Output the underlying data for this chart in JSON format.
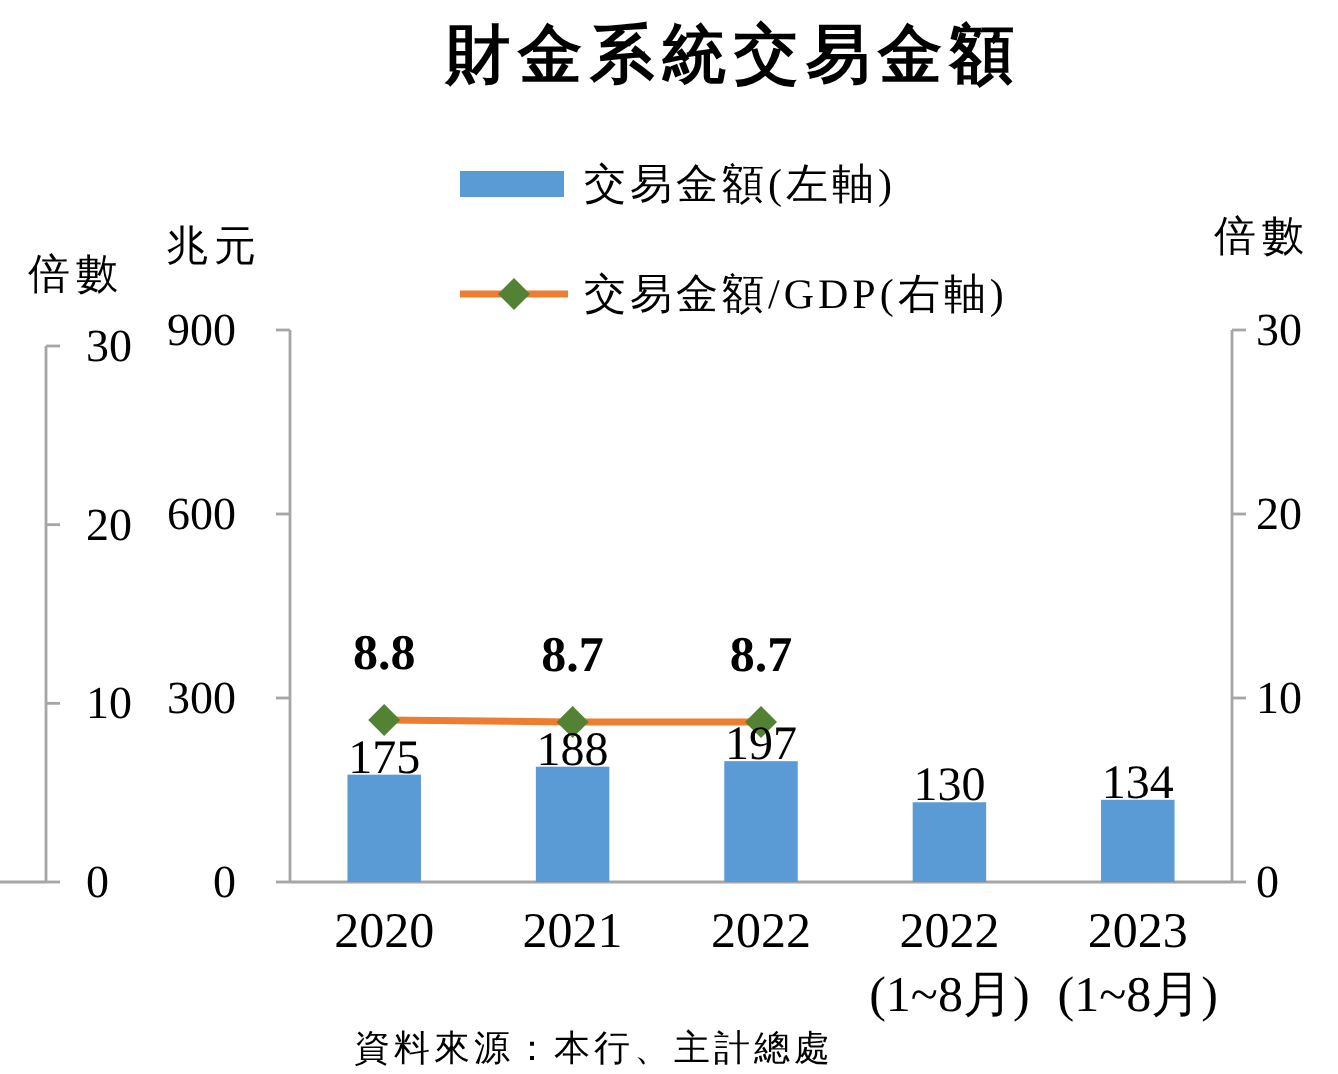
{
  "chart_data": {
    "type": "bar",
    "title": "財金系統交易金額",
    "ylabel": "兆元",
    "y2label": "倍數",
    "y3label": "倍數",
    "categories": [
      "2020",
      "2021",
      "2022",
      "2022\n(1~8月)",
      "2023\n(1~8月)"
    ],
    "series": [
      {
        "name": "交易金額(左軸)",
        "color": "#5b9bd5",
        "values": [
          175,
          188,
          197,
          130,
          134
        ]
      },
      {
        "name": "交易金額/GDP(右軸)",
        "type": "line",
        "axis": "y2",
        "color": "#ed7d31",
        "colors": [
          "#548235",
          "#548235",
          "#548235",
          null,
          null
        ],
        "marker": "diamond",
        "values": [
          8.8,
          8.7,
          8.7,
          null,
          null
        ]
      }
    ],
    "ylim": [
      0,
      900
    ],
    "yticks": [
      0,
      300,
      600,
      900
    ],
    "y2lim": [
      0,
      30
    ],
    "y2ticks": [
      0,
      10,
      20,
      30
    ],
    "y3lim": [
      0,
      30
    ],
    "y3ticks": [
      0,
      10,
      20,
      30
    ],
    "data_labels": true,
    "legend": "top",
    "annotations": [
      "資料來源：本行、主計總處"
    ]
  }
}
